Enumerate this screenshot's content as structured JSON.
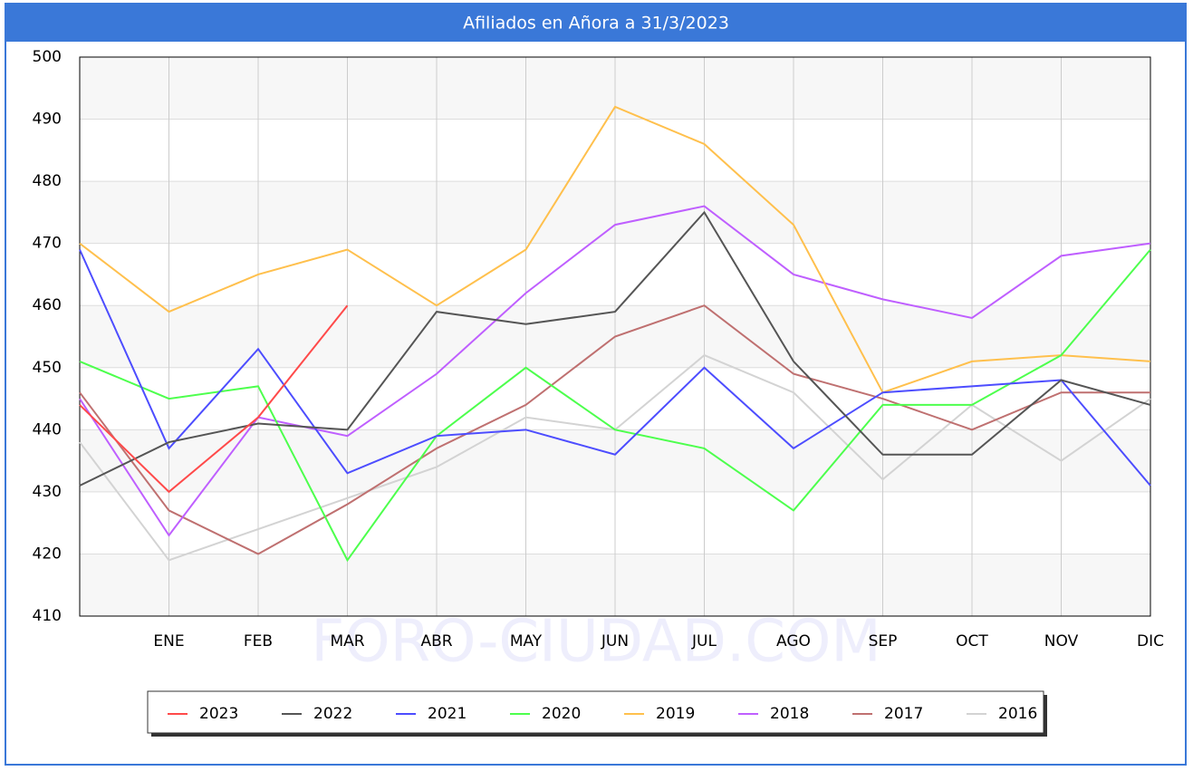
{
  "chart_data": {
    "type": "line",
    "title": "Afiliados en Añora a 31/3/2023",
    "watermark": "FORO-CIUDAD.COM",
    "categories": [
      null,
      "ENE",
      "FEB",
      "MAR",
      "ABR",
      "MAY",
      "JUN",
      "JUL",
      "AGO",
      "SEP",
      "OCT",
      "NOV",
      "DIC"
    ],
    "ylim": [
      410,
      500
    ],
    "yticks": [
      410,
      420,
      430,
      440,
      450,
      460,
      470,
      480,
      490,
      500
    ],
    "grid": true,
    "series": [
      {
        "name": "2023",
        "color": "#ff4a4a",
        "values": [
          444,
          430,
          442,
          460,
          null,
          null,
          null,
          null,
          null,
          null,
          null,
          null,
          null
        ]
      },
      {
        "name": "2022",
        "color": "#555555",
        "values": [
          431,
          438,
          441,
          440,
          459,
          457,
          459,
          475,
          451,
          436,
          436,
          448,
          444
        ]
      },
      {
        "name": "2021",
        "color": "#4d4dff",
        "values": [
          469,
          437,
          453,
          433,
          439,
          440,
          436,
          450,
          437,
          446,
          447,
          448,
          431
        ]
      },
      {
        "name": "2020",
        "color": "#4dff4d",
        "values": [
          451,
          445,
          447,
          419,
          439,
          450,
          440,
          437,
          427,
          444,
          444,
          452,
          469
        ]
      },
      {
        "name": "2019",
        "color": "#ffc04d",
        "values": [
          470,
          459,
          465,
          469,
          460,
          469,
          492,
          486,
          473,
          446,
          451,
          452,
          451
        ]
      },
      {
        "name": "2018",
        "color": "#bf5fff",
        "values": [
          445,
          423,
          442,
          439,
          449,
          462,
          473,
          476,
          465,
          461,
          458,
          468,
          470
        ]
      },
      {
        "name": "2017",
        "color": "#bf7070",
        "values": [
          446,
          427,
          420,
          428,
          437,
          444,
          455,
          460,
          449,
          445,
          440,
          446,
          446
        ]
      },
      {
        "name": "2016",
        "color": "#d3d3d3",
        "values": [
          438,
          419,
          424,
          429,
          434,
          442,
          440,
          452,
          446,
          432,
          444,
          435,
          445
        ]
      }
    ]
  }
}
